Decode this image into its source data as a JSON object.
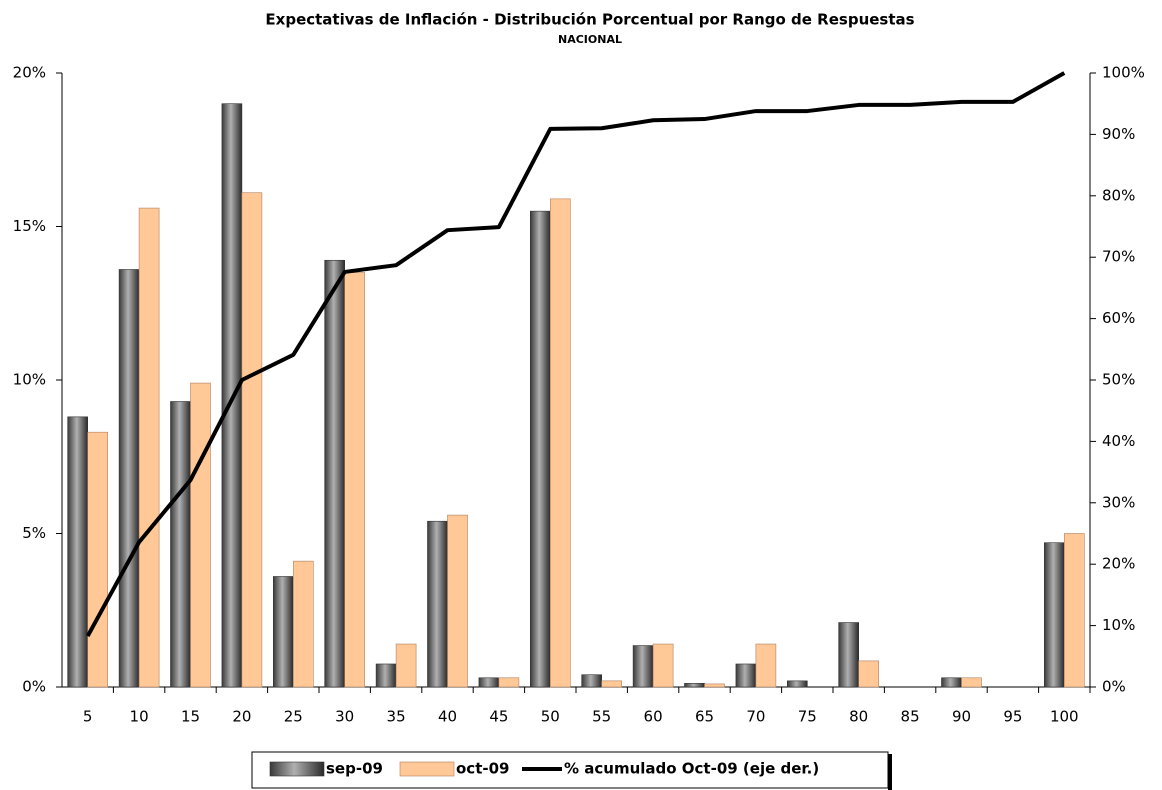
{
  "chart_data": {
    "type": "bar",
    "title": "Expectativas de Inflación - Distribución Porcentual por Rango de Respuestas",
    "subtitle": "NACIONAL",
    "categories": [
      5,
      10,
      15,
      20,
      25,
      30,
      35,
      40,
      45,
      50,
      55,
      60,
      65,
      70,
      75,
      80,
      85,
      90,
      95,
      100
    ],
    "series": [
      {
        "name": "sep-09",
        "type": "bar",
        "color": "#6e6e6e",
        "values": [
          8.8,
          13.6,
          9.3,
          19.0,
          3.6,
          13.9,
          0.75,
          5.4,
          0.3,
          15.5,
          0.4,
          1.35,
          0.12,
          0.75,
          0.2,
          2.1,
          0,
          0.3,
          0,
          4.7
        ]
      },
      {
        "name": "oct-09",
        "type": "bar",
        "color": "#ffc896",
        "values": [
          8.3,
          15.6,
          9.9,
          16.1,
          4.1,
          13.5,
          1.4,
          5.6,
          0.3,
          15.9,
          0.2,
          1.4,
          0.1,
          1.4,
          0,
          0.85,
          0,
          0.3,
          0,
          5.0
        ]
      },
      {
        "name": "% acumulado Oct-09 (eje der.)",
        "type": "line",
        "axis": "y2",
        "color": "#000000",
        "values": [
          8.3,
          23.6,
          33.7,
          50,
          54.1,
          67.6,
          68.7,
          74.4,
          74.9,
          90.9,
          91.0,
          92.3,
          92.5,
          93.8,
          93.8,
          94.8,
          94.8,
          95.3,
          95.3,
          100
        ]
      }
    ],
    "ylim": [
      0,
      20
    ],
    "yticks": [
      {
        "value": 0,
        "label": "0%"
      },
      {
        "value": 5,
        "label": "5%"
      },
      {
        "value": 10,
        "label": "10%"
      },
      {
        "value": 15,
        "label": "15%"
      },
      {
        "value": 20,
        "label": "20%"
      }
    ],
    "y2lim": [
      0,
      100
    ],
    "y2ticks": [
      {
        "value": 0,
        "label": "0%"
      },
      {
        "value": 10,
        "label": "10%"
      },
      {
        "value": 20,
        "label": "20%"
      },
      {
        "value": 30,
        "label": "30%"
      },
      {
        "value": 40,
        "label": "40%"
      },
      {
        "value": 50,
        "label": "50%"
      },
      {
        "value": 60,
        "label": "60%"
      },
      {
        "value": 70,
        "label": "70%"
      },
      {
        "value": 80,
        "label": "80%"
      },
      {
        "value": 90,
        "label": "90%"
      },
      {
        "value": 100,
        "label": "100%"
      }
    ],
    "grid": false,
    "legend": "bottom"
  }
}
